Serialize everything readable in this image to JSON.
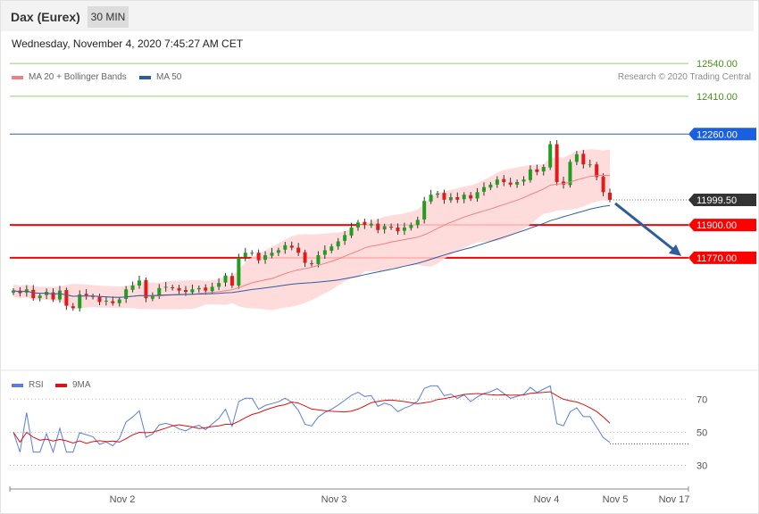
{
  "header": {
    "title": "Dax (Eurex)",
    "interval": "30 MIN"
  },
  "timestamp": "Wednesday, November 4, 2020 7:45:27 AM CET",
  "legend": {
    "ma20": {
      "label": "MA 20 + Bollinger Bands",
      "color": "#f08080"
    },
    "ma50": {
      "label": "MA 50",
      "color": "#2e5d9e"
    }
  },
  "copyright": "Research © 2020 Trading Central",
  "colors": {
    "up": "#1f9e1f",
    "down": "#e31a1a",
    "band": "#ffd6d6",
    "support": "#ff0000",
    "pivot": "#2e5d9e",
    "resistance": "#8fd16b",
    "arrow": "#2e5d9e",
    "last": "#333333"
  },
  "chart_data": {
    "type": "candlestick",
    "ylim": [
      11370,
      12650
    ],
    "levels": [
      {
        "value": 12540,
        "label": "12540.00",
        "kind": "resistance"
      },
      {
        "value": 12410,
        "label": "12410.00",
        "kind": "resistance"
      },
      {
        "value": 12260,
        "label": "12260.00",
        "kind": "pivot"
      },
      {
        "value": 11999.5,
        "label": "11999.50",
        "kind": "last"
      },
      {
        "value": 11900,
        "label": "11900.00",
        "kind": "support"
      },
      {
        "value": 11770,
        "label": "11770.00",
        "kind": "support"
      }
    ],
    "xticks": [
      "Nov 2",
      "Nov 3",
      "Nov 4",
      "Nov 5",
      "Nov 17"
    ],
    "closes": [
      11640,
      11630,
      11645,
      11610,
      11620,
      11635,
      11605,
      11640,
      11580,
      11570,
      11625,
      11620,
      11615,
      11595,
      11600,
      11590,
      11605,
      11645,
      11660,
      11680,
      11610,
      11620,
      11650,
      11655,
      11650,
      11640,
      11635,
      11645,
      11650,
      11640,
      11655,
      11670,
      11700,
      11660,
      11770,
      11790,
      11790,
      11760,
      11780,
      11790,
      11800,
      11820,
      11810,
      11790,
      11750,
      11745,
      11780,
      11800,
      11815,
      11835,
      11860,
      11890,
      11910,
      11900,
      11905,
      11880,
      11895,
      11890,
      11875,
      11890,
      11900,
      11920,
      11995,
      12020,
      12025,
      12000,
      12010,
      12000,
      12020,
      12005,
      12030,
      12050,
      12060,
      12080,
      12070,
      12060,
      12070,
      12080,
      12120,
      12110,
      12130,
      12220,
      12070,
      12060,
      12150,
      12180,
      12140,
      12140,
      12090,
      12030,
      11999.5
    ],
    "rsi": {
      "label": "RSI",
      "color": "#5b7fd6",
      "ylim": [
        20,
        82
      ],
      "ticks": [
        70,
        50,
        30
      ]
    },
    "rsi_ma": {
      "label": "9MA",
      "color": "#dd1111"
    },
    "rsi_last": 43
  }
}
